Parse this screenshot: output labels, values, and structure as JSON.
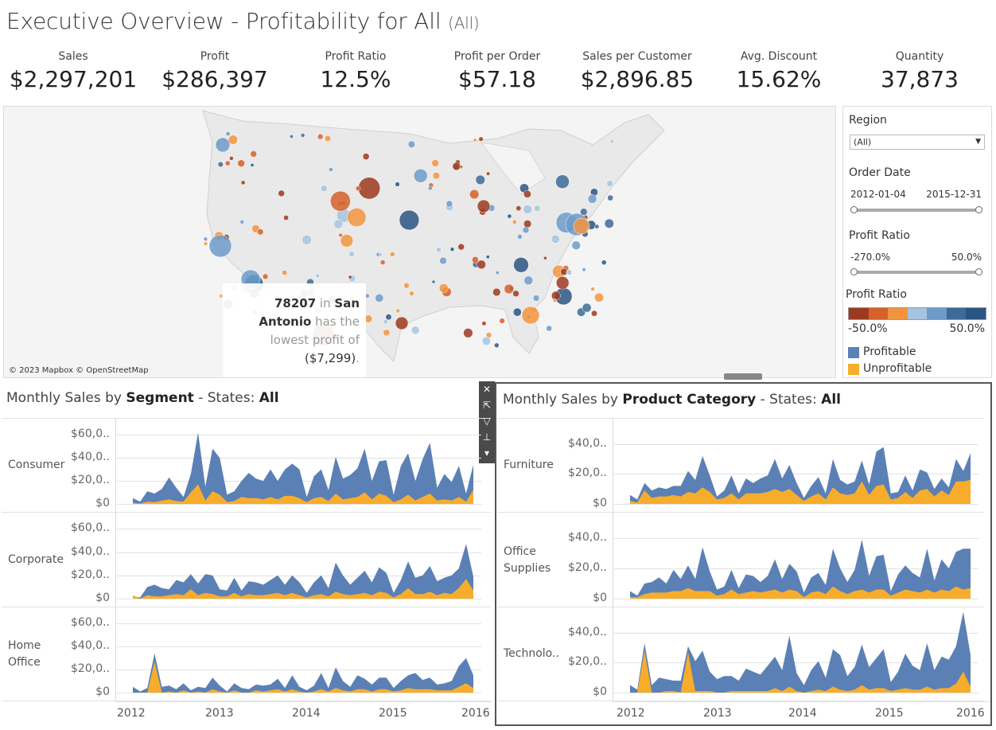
{
  "title": {
    "main": "Executive Overview - Profitability for All",
    "sub": "(All)"
  },
  "kpis": [
    {
      "label": "Sales",
      "value": "$2,297,201"
    },
    {
      "label": "Profit",
      "value": "$286,397"
    },
    {
      "label": "Profit Ratio",
      "value": "12.5%"
    },
    {
      "label": "Profit per Order",
      "value": "$57.18"
    },
    {
      "label": "Sales per Customer",
      "value": "$2,896.85"
    },
    {
      "label": "Avg. Discount",
      "value": "15.62%"
    },
    {
      "label": "Quantity",
      "value": "37,873"
    }
  ],
  "map": {
    "attribution": "© 2023 Mapbox © OpenStreetMap",
    "tooltip": {
      "zip": "78207",
      "in": "in",
      "city1": "San",
      "city2": "Antonio",
      "text1": "has the",
      "text2": "lowest profit of",
      "value": "($7,299)",
      "dot": "."
    }
  },
  "filters": {
    "region": {
      "title": "Region",
      "value": "(All)"
    },
    "order_date": {
      "title": "Order Date",
      "start": "2012-01-04",
      "end": "2015-12-31"
    },
    "profit_ratio": {
      "title": "Profit Ratio",
      "min": "-270.0%",
      "max": "50.0%"
    },
    "legend_ramp": {
      "title": "Profit Ratio",
      "min": "-50.0%",
      "max": "50.0%",
      "colors": [
        "#9c3a1f",
        "#d4622a",
        "#f2943e",
        "#a6c4e0",
        "#6d9bc9",
        "#3d6b99",
        "#2a5583"
      ]
    },
    "legend": [
      {
        "label": "Profitable",
        "color": "#5b80b5"
      },
      {
        "label": "Unprofitable",
        "color": "#f7ad2b"
      }
    ]
  },
  "left_panel": {
    "title_pre": "Monthly Sales by ",
    "title_bold": "Segment",
    "title_mid": " - States: ",
    "title_bold2": "All",
    "rows": [
      "Consumer",
      "Corporate",
      "Home Office"
    ],
    "y_ticks": [
      "$60,0..",
      "$40,0..",
      "$20,0..",
      "$0"
    ],
    "x_ticks": [
      "2012",
      "2013",
      "2014",
      "2015",
      "2016"
    ]
  },
  "right_panel": {
    "title_pre": "Monthly Sales by ",
    "title_bold": "Product Category",
    "title_mid": " - States: ",
    "title_bold2": "All",
    "rows": [
      "Furniture",
      "Office Supplies",
      "Technolo.."
    ],
    "y_ticks": [
      "$40,0..",
      "$20,0..",
      "$0"
    ],
    "x_ticks": [
      "2012",
      "2013",
      "2014",
      "2015",
      "2016"
    ]
  },
  "chart_data": [
    {
      "type": "area",
      "title": "Monthly Sales by Segment - States: All",
      "x": [
        "2012-01",
        "2012-02",
        "2012-03",
        "2012-04",
        "2012-05",
        "2012-06",
        "2012-07",
        "2012-08",
        "2012-09",
        "2012-10",
        "2012-11",
        "2012-12",
        "2013-01",
        "2013-02",
        "2013-03",
        "2013-04",
        "2013-05",
        "2013-06",
        "2013-07",
        "2013-08",
        "2013-09",
        "2013-10",
        "2013-11",
        "2013-12",
        "2014-01",
        "2014-02",
        "2014-03",
        "2014-04",
        "2014-05",
        "2014-06",
        "2014-07",
        "2014-08",
        "2014-09",
        "2014-10",
        "2014-11",
        "2014-12",
        "2015-01",
        "2015-02",
        "2015-03",
        "2015-04",
        "2015-05",
        "2015-06",
        "2015-07",
        "2015-08",
        "2015-09",
        "2015-10",
        "2015-11",
        "2015-12"
      ],
      "ylim": [
        0,
        65000
      ],
      "panels": [
        {
          "name": "Consumer",
          "series": [
            {
              "name": "Profitable",
              "values": [
                5000,
                2000,
                11000,
                9000,
                13000,
                23000,
                14000,
                6000,
                26000,
                62000,
                15000,
                48000,
                40000,
                8000,
                11000,
                20000,
                27000,
                22000,
                20000,
                30000,
                20000,
                30000,
                35000,
                30000,
                6000,
                24000,
                30000,
                12000,
                41000,
                22000,
                25000,
                31000,
                48000,
                20000,
                37000,
                38000,
                8000,
                33000,
                44000,
                20000,
                39000,
                53000,
                14000,
                26000,
                19000,
                33000,
                9000,
                34000
              ]
            },
            {
              "name": "Unprofitable",
              "values": [
                800,
                300,
                2000,
                1500,
                3000,
                4000,
                2500,
                2000,
                10000,
                17000,
                3000,
                11000,
                8000,
                1500,
                2500,
                6000,
                5000,
                5000,
                4000,
                6000,
                4000,
                7000,
                7000,
                5000,
                1500,
                5000,
                6000,
                2500,
                9000,
                4000,
                5000,
                6000,
                10000,
                4000,
                9000,
                7000,
                1500,
                4000,
                8000,
                3000,
                6000,
                9000,
                3000,
                4000,
                3000,
                6000,
                2000,
                12000
              ]
            }
          ]
        },
        {
          "name": "Corporate",
          "series": [
            {
              "name": "Profitable",
              "values": [
                2000,
                1000,
                10000,
                12000,
                9000,
                8000,
                16000,
                14000,
                21000,
                13000,
                21000,
                20000,
                8000,
                7000,
                18000,
                7000,
                15000,
                14000,
                12000,
                16000,
                20000,
                12000,
                20000,
                14000,
                5000,
                14000,
                20000,
                9000,
                31000,
                20000,
                12000,
                18000,
                24000,
                14000,
                27000,
                22000,
                5000,
                16000,
                32000,
                18000,
                20000,
                28000,
                15000,
                18000,
                20000,
                26000,
                47000,
                19000
              ]
            },
            {
              "name": "Unprofitable",
              "values": [
                3000,
                0,
                3000,
                2000,
                2000,
                3000,
                4000,
                3000,
                8000,
                3000,
                5000,
                4000,
                2000,
                2000,
                5000,
                2000,
                4000,
                3000,
                3000,
                4000,
                5000,
                3000,
                5000,
                3000,
                1000,
                3000,
                4000,
                2000,
                6000,
                4000,
                3000,
                4000,
                5000,
                3000,
                6000,
                5000,
                1000,
                4000,
                9000,
                4000,
                4000,
                6000,
                3000,
                5000,
                4000,
                9000,
                17000,
                7000
              ]
            }
          ]
        },
        {
          "name": "Home Office",
          "series": [
            {
              "name": "Profitable",
              "values": [
                5000,
                1000,
                4000,
                34000,
                5000,
                6000,
                3000,
                8000,
                2000,
                5000,
                4000,
                13000,
                6000,
                1000,
                8000,
                4000,
                3000,
                7000,
                6000,
                7000,
                12000,
                4000,
                15000,
                5000,
                2000,
                6000,
                17000,
                4000,
                22000,
                10000,
                5000,
                15000,
                12000,
                7000,
                13000,
                13000,
                4000,
                10000,
                15000,
                17000,
                11000,
                13000,
                7000,
                8000,
                10000,
                23000,
                30000,
                15000
              ]
            },
            {
              "name": "Unprofitable",
              "values": [
                0,
                0,
                0,
                27000,
                0,
                1000,
                0,
                2000,
                0,
                1000,
                0,
                3000,
                1000,
                0,
                2000,
                0,
                0,
                2000,
                1000,
                2000,
                3000,
                1000,
                3000,
                1000,
                0,
                1000,
                3000,
                1000,
                4000,
                2000,
                1000,
                3000,
                3000,
                1000,
                3000,
                3000,
                1000,
                2000,
                4000,
                3000,
                3000,
                3000,
                2000,
                2000,
                2000,
                5000,
                8000,
                4000
              ]
            }
          ]
        }
      ]
    },
    {
      "type": "area",
      "title": "Monthly Sales by Product Category - States: All",
      "x": [
        "2012-01",
        "2012-02",
        "2012-03",
        "2012-04",
        "2012-05",
        "2012-06",
        "2012-07",
        "2012-08",
        "2012-09",
        "2012-10",
        "2012-11",
        "2012-12",
        "2013-01",
        "2013-02",
        "2013-03",
        "2013-04",
        "2013-05",
        "2013-06",
        "2013-07",
        "2013-08",
        "2013-09",
        "2013-10",
        "2013-11",
        "2013-12",
        "2014-01",
        "2014-02",
        "2014-03",
        "2014-04",
        "2014-05",
        "2014-06",
        "2014-07",
        "2014-08",
        "2014-09",
        "2014-10",
        "2014-11",
        "2014-12",
        "2015-01",
        "2015-02",
        "2015-03",
        "2015-04",
        "2015-05",
        "2015-06",
        "2015-07",
        "2015-08",
        "2015-09",
        "2015-10",
        "2015-11",
        "2015-12"
      ],
      "ylim": [
        0,
        50000
      ],
      "panels": [
        {
          "name": "Furniture",
          "series": [
            {
              "name": "Profitable",
              "values": [
                6000,
                3000,
                14000,
                9000,
                11000,
                10000,
                12000,
                12000,
                22000,
                16000,
                32000,
                19000,
                5000,
                9000,
                19000,
                7000,
                17000,
                14000,
                17000,
                19000,
                30000,
                17000,
                26000,
                14000,
                4000,
                12000,
                18000,
                7000,
                30000,
                16000,
                13000,
                15000,
                29000,
                13000,
                35000,
                38000,
                7000,
                8000,
                19000,
                9000,
                23000,
                21000,
                10000,
                17000,
                11000,
                30000,
                22000,
                34000
              ]
            },
            {
              "name": "Unprofitable",
              "values": [
                2000,
                1000,
                9000,
                4000,
                5000,
                5000,
                6000,
                5000,
                8000,
                7000,
                11000,
                8000,
                3000,
                4000,
                7000,
                3000,
                7000,
                7000,
                7000,
                8000,
                10000,
                8000,
                10000,
                6000,
                2000,
                5000,
                7000,
                3000,
                11000,
                7000,
                6000,
                7000,
                15000,
                6000,
                12000,
                13000,
                3000,
                4000,
                8000,
                4000,
                9000,
                10000,
                5000,
                9000,
                6000,
                15000,
                15000,
                16000
              ]
            }
          ]
        },
        {
          "name": "Office Supplies",
          "series": [
            {
              "name": "Profitable",
              "values": [
                5000,
                2000,
                10000,
                11000,
                14000,
                10000,
                19000,
                13000,
                22000,
                13000,
                34000,
                18000,
                6000,
                8000,
                19000,
                7000,
                16000,
                15000,
                11000,
                15000,
                26000,
                13000,
                23000,
                18000,
                4000,
                14000,
                17000,
                9000,
                33000,
                20000,
                11000,
                19000,
                39000,
                15000,
                28000,
                29000,
                5000,
                16000,
                22000,
                17000,
                14000,
                33000,
                12000,
                26000,
                20000,
                31000,
                33000,
                33000
              ]
            },
            {
              "name": "Unprofitable",
              "values": [
                1000,
                1000,
                3000,
                4000,
                4000,
                4000,
                5000,
                5000,
                7000,
                5000,
                5000,
                5000,
                2000,
                3000,
                6000,
                3000,
                4000,
                5000,
                4000,
                5000,
                6000,
                4000,
                6000,
                5000,
                1000,
                4000,
                5000,
                3000,
                8000,
                5000,
                3000,
                5000,
                6000,
                4000,
                6000,
                6000,
                2000,
                4000,
                6000,
                5000,
                4000,
                6000,
                4000,
                6000,
                5000,
                8000,
                6000,
                7000
              ]
            }
          ]
        },
        {
          "name": "Technolo..",
          "series": [
            {
              "name": "Profitable",
              "values": [
                5000,
                2000,
                33000,
                5000,
                10000,
                9000,
                8000,
                8000,
                31000,
                21000,
                28000,
                14000,
                9000,
                11000,
                11000,
                8000,
                16000,
                14000,
                12000,
                18000,
                24000,
                15000,
                38000,
                13000,
                5000,
                15000,
                21000,
                10000,
                29000,
                25000,
                11000,
                17000,
                32000,
                17000,
                23000,
                29000,
                7000,
                14000,
                26000,
                18000,
                15000,
                33000,
                15000,
                24000,
                22000,
                31000,
                54000,
                25000
              ]
            },
            {
              "name": "Unprofitable",
              "values": [
                0,
                0,
                28000,
                0,
                0,
                1000,
                1000,
                0,
                27000,
                1000,
                1000,
                1000,
                0,
                0,
                1000,
                1000,
                1000,
                1000,
                1000,
                1000,
                3000,
                1000,
                4000,
                1000,
                0,
                1000,
                2000,
                1000,
                4000,
                2000,
                1000,
                2000,
                5000,
                2000,
                3000,
                3000,
                1000,
                2000,
                3000,
                2000,
                2000,
                4000,
                2000,
                3000,
                3000,
                6000,
                14000,
                4000
              ]
            }
          ]
        }
      ]
    }
  ]
}
